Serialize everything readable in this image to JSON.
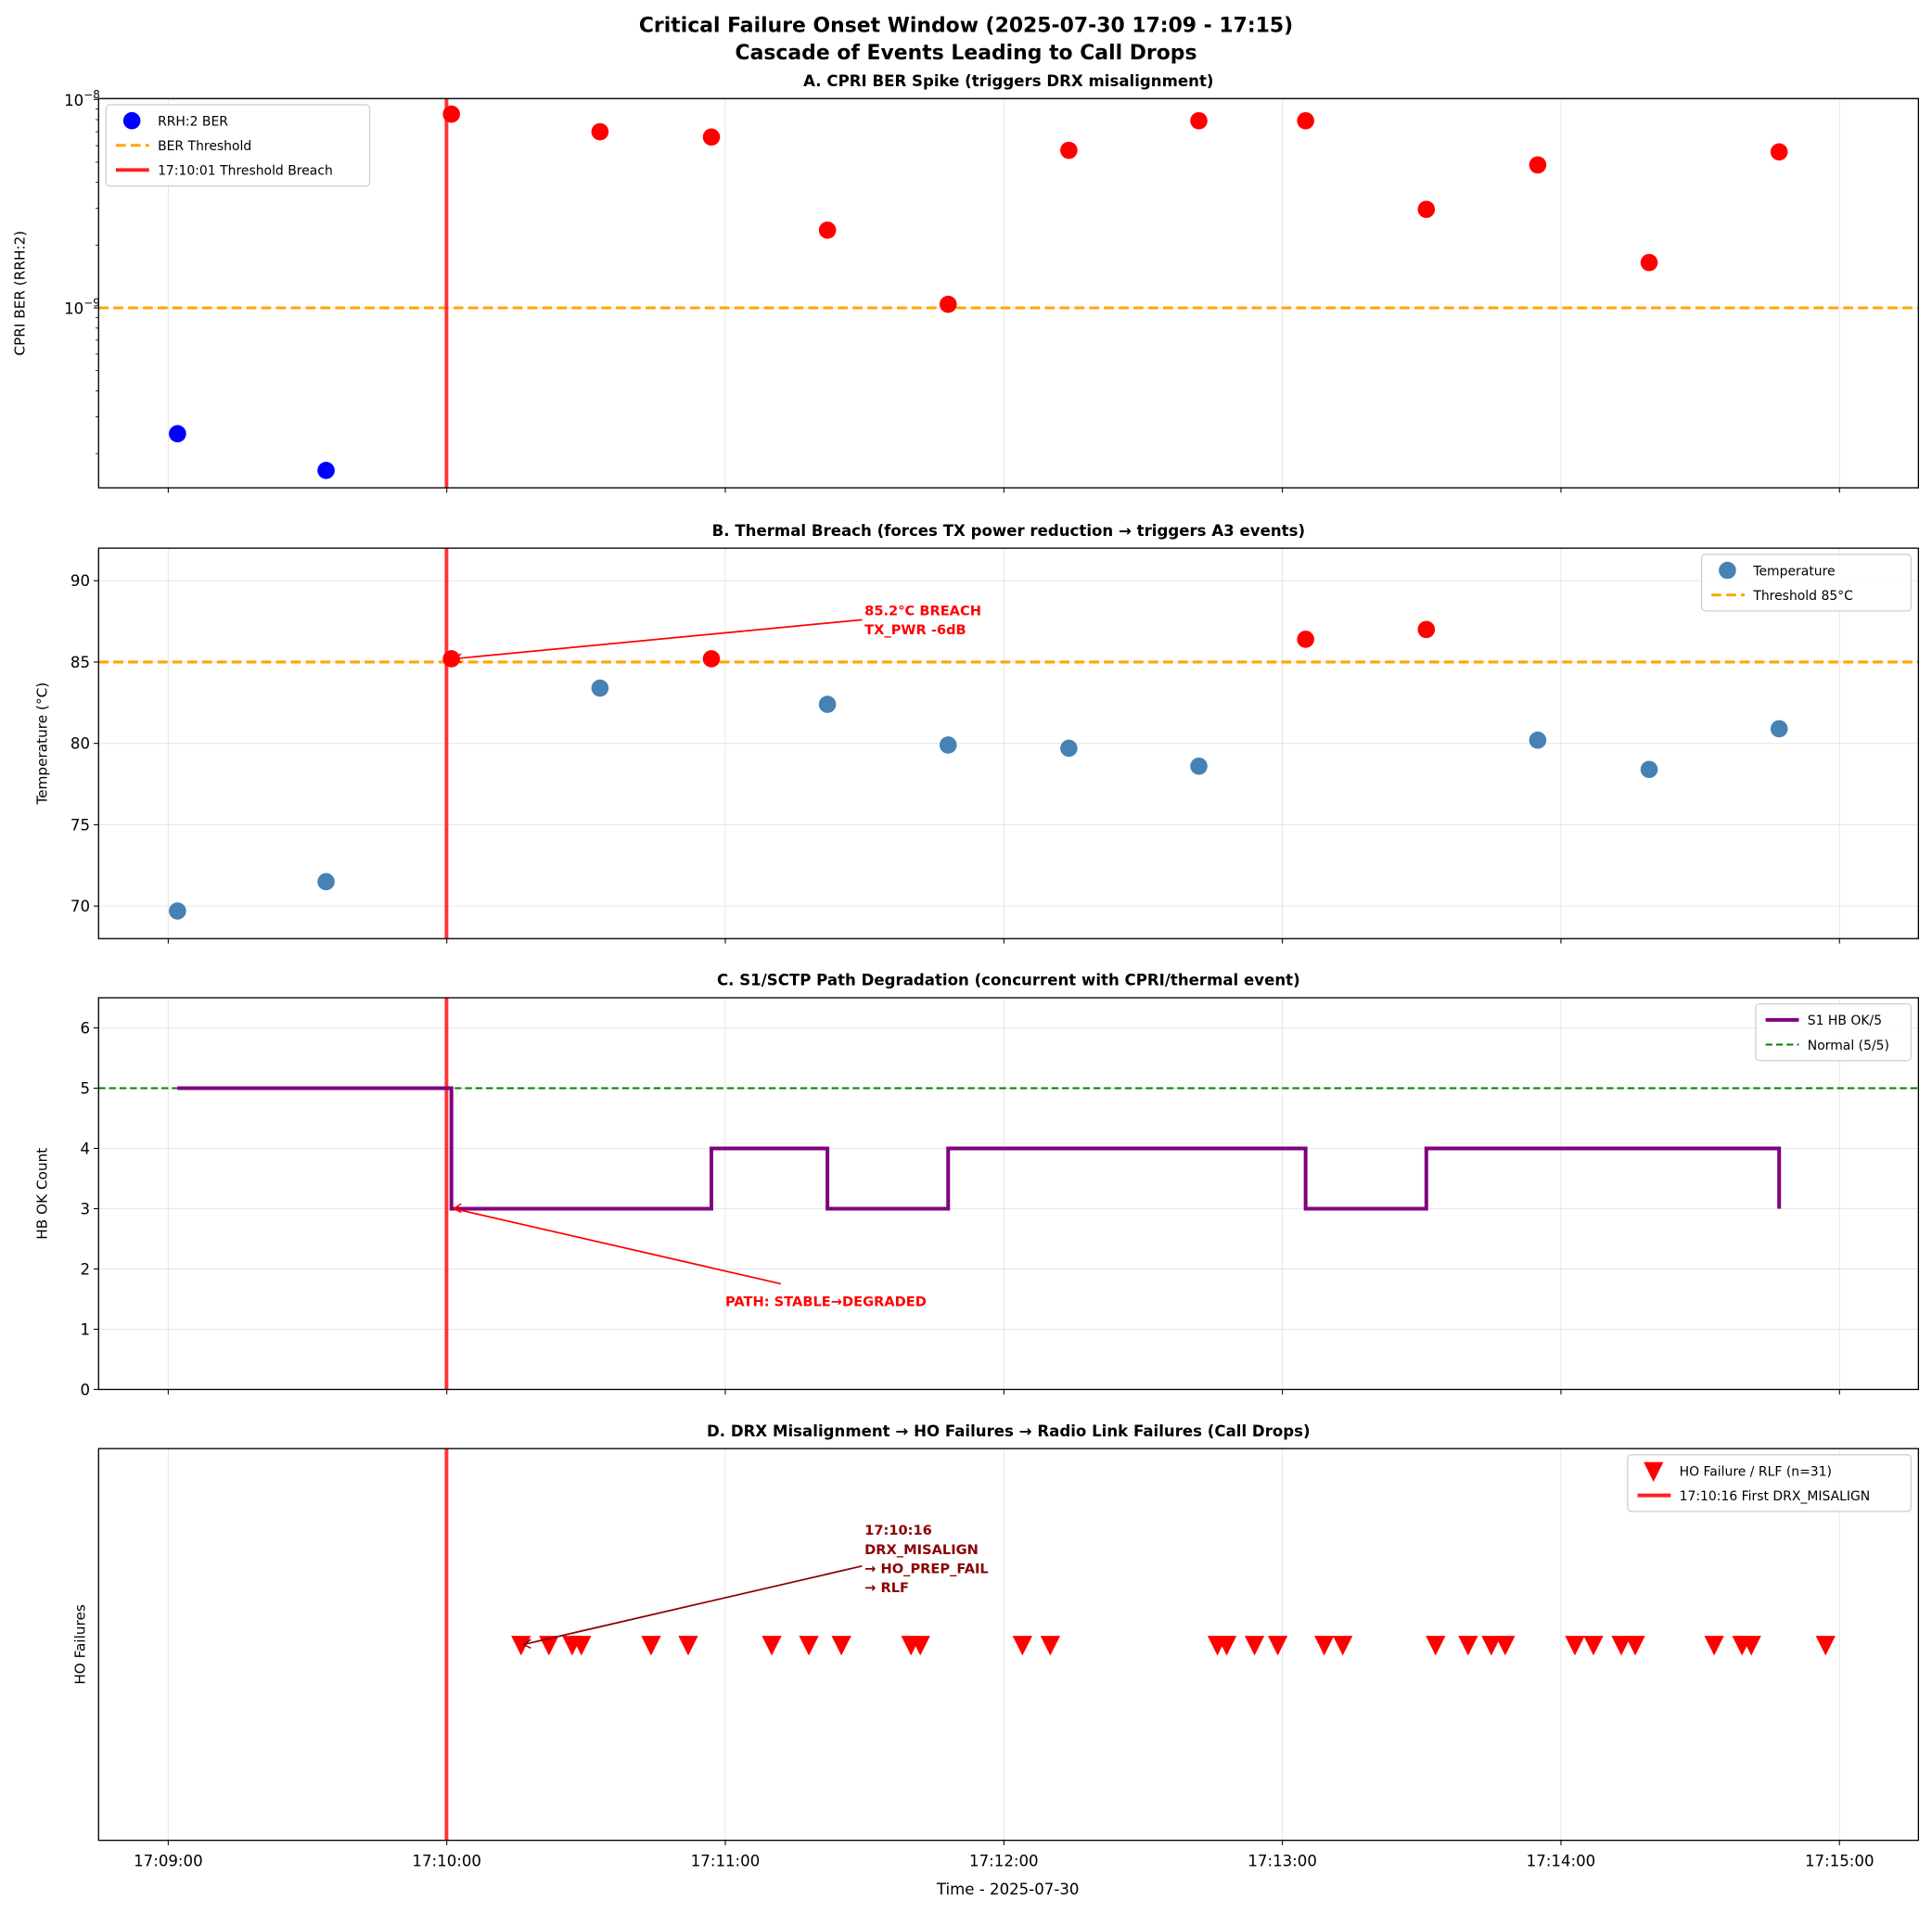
{
  "chart_data": {
    "title": "Critical Failure Onset Window (2025-07-30 17:09 - 17:15)",
    "subtitle": "Cascade of Events Leading to Call Drops",
    "xlabel": "Time - 2025-07-30",
    "xlim": [
      "17:08:45",
      "17:15:17"
    ],
    "xticks": [
      "17:09:00",
      "17:10:00",
      "17:11:00",
      "17:12:00",
      "17:13:00",
      "17:14:00",
      "17:15:00"
    ],
    "grid": true,
    "breach_line_time": "17:10:01",
    "breach_line_color": "#ff2020",
    "panels": [
      {
        "id": "A",
        "type": "scatter",
        "title": "A. CPRI BER Spike (triggers DRX misalignment)",
        "ylabel": "CPRI BER (RRH:2)",
        "yscale": "log",
        "ylim": [
          1.37e-10,
          1.01e-08
        ],
        "yticks": [
          {
            "value": 1e-08,
            "base": "10",
            "exp": "−8"
          },
          {
            "value": 1e-09,
            "base": "10",
            "exp": "−9"
          }
        ],
        "x": [
          "17:09:02",
          "17:09:34",
          "17:10:01",
          "17:10:33",
          "17:10:57",
          "17:11:22",
          "17:11:48",
          "17:12:14",
          "17:12:42",
          "17:13:05",
          "17:13:31",
          "17:13:55",
          "17:14:19",
          "17:14:47"
        ],
        "y": [
          2.49e-10,
          1.66e-10,
          8.5e-09,
          7e-09,
          6.6e-09,
          2.36e-09,
          1.04e-09,
          5.7e-09,
          7.9e-09,
          7.9e-09,
          2.97e-09,
          4.85e-09,
          1.65e-09,
          5.6e-09
        ],
        "threshold": 1e-09,
        "color_normal": "#0000ff",
        "color_breach": "#ff0000",
        "threshold_color": "#ffa500",
        "legend_position": "upper-left",
        "legend": [
          "RRH:2 BER",
          "BER Threshold",
          "17:10:01 Threshold Breach"
        ]
      },
      {
        "id": "B",
        "type": "scatter",
        "title": "B. Thermal Breach (forces TX power reduction → triggers A3 events)",
        "ylabel": "Temperature (°C)",
        "ylim": [
          68,
          92
        ],
        "yticks": [
          70,
          75,
          80,
          85,
          90
        ],
        "x": [
          "17:09:02",
          "17:09:34",
          "17:10:01",
          "17:10:33",
          "17:10:57",
          "17:11:22",
          "17:11:48",
          "17:12:14",
          "17:12:42",
          "17:13:05",
          "17:13:31",
          "17:13:55",
          "17:14:19",
          "17:14:47"
        ],
        "y": [
          69.7,
          71.5,
          85.2,
          83.4,
          85.2,
          82.4,
          79.9,
          79.7,
          78.6,
          86.4,
          87.0,
          80.2,
          78.4,
          80.9
        ],
        "threshold": 85,
        "color_normal": "#4682b4",
        "color_breach": "#ff0000",
        "threshold_color": "#ffa500",
        "legend_position": "upper-right",
        "legend": [
          "Temperature",
          "Threshold 85°C"
        ],
        "annotation": {
          "lines": [
            "85.2°C BREACH",
            "TX_PWR -6dB"
          ],
          "point": [
            "17:10:01",
            85.2
          ],
          "text_at": [
            "17:11:30",
            87.6
          ],
          "color": "#ff0000"
        }
      },
      {
        "id": "C",
        "type": "line",
        "title": "C. S1/SCTP Path Degradation (concurrent with CPRI/thermal event)",
        "ylabel": "HB OK Count",
        "ylim": [
          0,
          6.5
        ],
        "yticks": [
          0,
          1,
          2,
          3,
          4,
          5,
          6
        ],
        "x": [
          "17:09:02",
          "17:09:34",
          "17:10:01",
          "17:10:33",
          "17:10:57",
          "17:11:22",
          "17:11:48",
          "17:12:14",
          "17:12:42",
          "17:13:05",
          "17:13:31",
          "17:13:55",
          "17:14:19",
          "17:14:47"
        ],
        "y": [
          5,
          5,
          3,
          3,
          4,
          3,
          4,
          4,
          4,
          3,
          4,
          4,
          4,
          3
        ],
        "step": "post",
        "line_color": "#800080",
        "normal": 5,
        "normal_color": "#008000",
        "legend_position": "upper-right",
        "legend": [
          "S1 HB OK/5",
          "Normal (5/5)"
        ],
        "annotation": {
          "lines": [
            "PATH: STABLE→DEGRADED"
          ],
          "point": [
            "17:10:01",
            3
          ],
          "text_at": [
            "17:11:00",
            1.55
          ],
          "color": "#ff0000"
        }
      },
      {
        "id": "D",
        "type": "scatter",
        "title": "D. DRX Misalignment → HO Failures → Radio Link Failures (Call Drops)",
        "ylabel": "HO Failures",
        "ylim": [
          0,
          2
        ],
        "marker": "triangle-down",
        "marker_color": "#ff0000",
        "x": [
          "17:10:16",
          "17:10:22",
          "17:10:27",
          "17:10:29",
          "17:10:44",
          "17:10:52",
          "17:11:10",
          "17:11:18",
          "17:11:25",
          "17:11:40",
          "17:11:42",
          "17:12:04",
          "17:12:10",
          "17:12:46",
          "17:12:48",
          "17:12:54",
          "17:12:59",
          "17:13:09",
          "17:13:13",
          "17:13:33",
          "17:13:40",
          "17:13:45",
          "17:13:48",
          "17:14:03",
          "17:14:07",
          "17:14:13",
          "17:14:16",
          "17:14:33",
          "17:14:39",
          "17:14:41",
          "17:14:57"
        ],
        "y": [
          1,
          1,
          1,
          1,
          1,
          1,
          1,
          1,
          1,
          1,
          1,
          1,
          1,
          1,
          1,
          1,
          1,
          1,
          1,
          1,
          1,
          1,
          1,
          1,
          1,
          1,
          1,
          1,
          1,
          1,
          1
        ],
        "legend_position": "upper-right",
        "legend": [
          "HO Failure / RLF (n=31)",
          "17:10:16 First DRX_MISALIGN"
        ],
        "annotation": {
          "lines": [
            "17:10:16",
            "DRX_MISALIGN",
            "→ HO_PREP_FAIL",
            "→ RLF"
          ],
          "point": [
            "17:10:16",
            1
          ],
          "text_at": [
            "17:11:30",
            1.3
          ],
          "color": "#8b0000"
        }
      }
    ]
  }
}
